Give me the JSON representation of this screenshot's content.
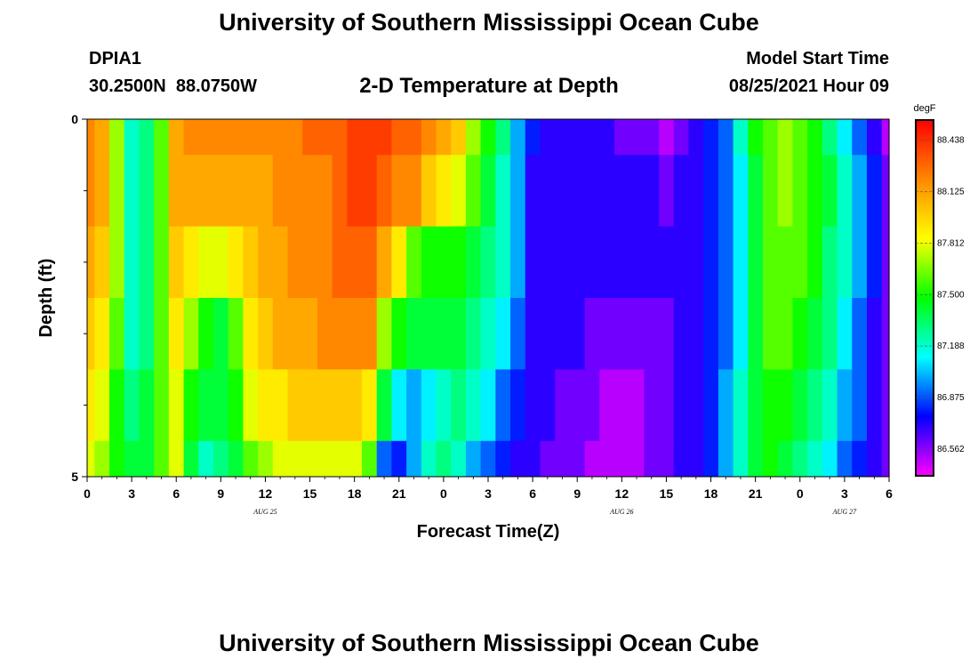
{
  "header": {
    "title": "University of Southern Mississippi Ocean Cube",
    "station_id": "DPIA1",
    "coordinates": "30.2500N  88.0750W",
    "chart_title": "2-D Temperature at Depth",
    "model_start_label": "Model Start Time",
    "model_start_value": "08/25/2021 Hour 09"
  },
  "footer": {
    "title": "University of Southern Mississippi Ocean Cube"
  },
  "chart_data": {
    "type": "heatmap",
    "title": "2-D Temperature at Depth",
    "xlabel": "Forecast Time(Z)",
    "ylabel": "Depth (ft)",
    "units": "degF",
    "x_hours": [
      0,
      1,
      2,
      3,
      4,
      5,
      6,
      7,
      8,
      9,
      10,
      11,
      12,
      13,
      14,
      15,
      16,
      17,
      18,
      19,
      20,
      21,
      22,
      23,
      24,
      25,
      26,
      27,
      28,
      29,
      30,
      31,
      32,
      33,
      34,
      35,
      36,
      37,
      38,
      39,
      40,
      41,
      42,
      43,
      44,
      45,
      46,
      47,
      48,
      49,
      50,
      51,
      52,
      53,
      54
    ],
    "xlim_hours": [
      0,
      54
    ],
    "x_tick_labels": [
      "0",
      "3",
      "6",
      "9",
      "12",
      "15",
      "18",
      "21",
      "0",
      "3",
      "6",
      "9",
      "12",
      "15",
      "18",
      "21",
      "0",
      "3",
      "6"
    ],
    "date_labels": [
      {
        "text": "AUG 25",
        "hour": 12
      },
      {
        "text": "AUG 26",
        "hour": 36
      },
      {
        "text": "AUG 27",
        "hour": 51
      }
    ],
    "y_tick_labels": [
      "0",
      "5"
    ],
    "ylim": [
      0,
      5
    ],
    "depth_bands": [
      {
        "top": 0,
        "bottom": 0.5
      },
      {
        "top": 0.5,
        "bottom": 1.5
      },
      {
        "top": 1.5,
        "bottom": 2.5
      },
      {
        "top": 2.5,
        "bottom": 3.5
      },
      {
        "top": 3.5,
        "bottom": 4.5
      },
      {
        "top": 4.5,
        "bottom": 5
      }
    ],
    "values": [
      [
        88.2,
        88.1,
        87.7,
        87.2,
        87.3,
        87.6,
        88.1,
        88.2,
        88.2,
        88.2,
        88.2,
        88.2,
        88.2,
        88.2,
        88.2,
        88.3,
        88.3,
        88.3,
        88.4,
        88.4,
        88.4,
        88.3,
        88.3,
        88.2,
        88.1,
        88.0,
        87.7,
        87.5,
        87.3,
        87.0,
        86.8,
        86.7,
        86.7,
        86.7,
        86.7,
        86.7,
        86.6,
        86.6,
        86.6,
        86.5,
        86.6,
        86.7,
        86.8,
        86.9,
        87.2,
        87.5,
        87.6,
        87.7,
        87.6,
        87.5,
        87.3,
        87.1,
        86.9,
        86.7,
        86.5
      ],
      [
        88.2,
        88.1,
        87.7,
        87.2,
        87.3,
        87.6,
        88.1,
        88.1,
        88.1,
        88.1,
        88.1,
        88.1,
        88.1,
        88.2,
        88.2,
        88.2,
        88.2,
        88.3,
        88.4,
        88.4,
        88.3,
        88.2,
        88.2,
        88.0,
        87.9,
        87.8,
        87.6,
        87.4,
        87.2,
        87.0,
        86.7,
        86.7,
        86.7,
        86.7,
        86.7,
        86.7,
        86.7,
        86.7,
        86.7,
        86.6,
        86.7,
        86.7,
        86.8,
        86.9,
        87.1,
        87.4,
        87.6,
        87.7,
        87.6,
        87.5,
        87.4,
        87.2,
        87.0,
        86.8,
        86.6
      ],
      [
        88.1,
        88.0,
        87.7,
        87.2,
        87.3,
        87.6,
        88.0,
        87.9,
        87.8,
        87.8,
        87.9,
        88.0,
        88.1,
        88.1,
        88.2,
        88.2,
        88.2,
        88.3,
        88.3,
        88.3,
        88.1,
        87.9,
        87.6,
        87.5,
        87.5,
        87.5,
        87.4,
        87.3,
        87.2,
        87.0,
        86.7,
        86.7,
        86.7,
        86.7,
        86.7,
        86.7,
        86.7,
        86.7,
        86.7,
        86.7,
        86.7,
        86.7,
        86.8,
        86.9,
        87.1,
        87.4,
        87.6,
        87.6,
        87.6,
        87.5,
        87.3,
        87.2,
        87.0,
        86.8,
        86.6
      ],
      [
        88.0,
        87.9,
        87.6,
        87.2,
        87.3,
        87.6,
        87.9,
        87.7,
        87.5,
        87.4,
        87.6,
        87.9,
        88.0,
        88.1,
        88.1,
        88.1,
        88.2,
        88.2,
        88.2,
        88.2,
        87.7,
        87.5,
        87.4,
        87.4,
        87.4,
        87.4,
        87.3,
        87.2,
        87.1,
        86.9,
        86.7,
        86.7,
        86.7,
        86.7,
        86.6,
        86.6,
        86.6,
        86.6,
        86.6,
        86.6,
        86.7,
        86.7,
        86.8,
        86.9,
        87.1,
        87.4,
        87.6,
        87.6,
        87.5,
        87.4,
        87.3,
        87.1,
        86.9,
        86.7,
        86.6
      ],
      [
        87.9,
        87.8,
        87.5,
        87.3,
        87.4,
        87.6,
        87.8,
        87.5,
        87.4,
        87.4,
        87.5,
        87.8,
        87.9,
        87.9,
        88.0,
        88.0,
        88.0,
        88.0,
        88.0,
        87.9,
        87.4,
        87.1,
        87.0,
        87.1,
        87.2,
        87.3,
        87.2,
        87.1,
        86.9,
        86.8,
        86.7,
        86.7,
        86.6,
        86.6,
        86.6,
        86.5,
        86.5,
        86.5,
        86.6,
        86.6,
        86.7,
        86.7,
        86.8,
        87.0,
        87.2,
        87.4,
        87.5,
        87.5,
        87.4,
        87.3,
        87.2,
        87.0,
        86.9,
        86.7,
        86.6
      ],
      [
        87.8,
        87.7,
        87.5,
        87.4,
        87.4,
        87.6,
        87.8,
        87.4,
        87.2,
        87.3,
        87.4,
        87.6,
        87.7,
        87.8,
        87.8,
        87.8,
        87.8,
        87.8,
        87.8,
        87.6,
        86.9,
        86.8,
        87.0,
        87.2,
        87.3,
        87.2,
        87.0,
        86.9,
        86.8,
        86.7,
        86.7,
        86.6,
        86.6,
        86.6,
        86.5,
        86.5,
        86.5,
        86.5,
        86.6,
        86.6,
        86.7,
        86.7,
        86.8,
        87.0,
        87.2,
        87.4,
        87.5,
        87.4,
        87.3,
        87.2,
        87.1,
        86.9,
        86.8,
        86.7,
        86.6
      ]
    ],
    "colorbar": {
      "label": "degF",
      "vmin": 86.4,
      "vmax": 88.56,
      "tick_values": [
        88.438,
        88.125,
        87.812,
        87.5,
        87.188,
        86.875,
        86.562
      ],
      "tick_labels": [
        "88.438",
        "88.125",
        "87.812",
        "87.500",
        "87.188",
        "86.875",
        "86.562"
      ],
      "colormap": [
        "#ff00ff",
        "#0000ff",
        "#00ffff",
        "#00ff00",
        "#ffff00",
        "#ff8800",
        "#ff0000"
      ]
    }
  }
}
